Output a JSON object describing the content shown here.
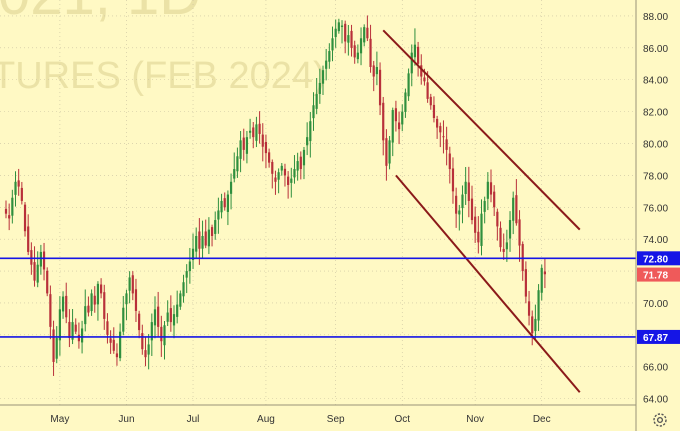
{
  "watermark": {
    "line1": "021, 1D",
    "line2": "TURES (FEB 2024)"
  },
  "chart_data": {
    "type": "candlestick",
    "ylim": [
      63.6,
      88.5
    ],
    "y_ticks": [
      64,
      66,
      68,
      70,
      72,
      74,
      76,
      78,
      80,
      82,
      84,
      86,
      88
    ],
    "x_ticks": [
      {
        "label": "May",
        "i": 17
      },
      {
        "label": "Jun",
        "i": 38
      },
      {
        "label": "Jul",
        "i": 59
      },
      {
        "label": "Aug",
        "i": 82
      },
      {
        "label": "Sep",
        "i": 104
      },
      {
        "label": "Oct",
        "i": 125
      },
      {
        "label": "Nov",
        "i": 148
      },
      {
        "label": "Dec",
        "i": 169
      }
    ],
    "closes": [
      75.6,
      75.3,
      76.6,
      77.6,
      77.3,
      76.4,
      74.5,
      73.2,
      72.4,
      71.4,
      72.4,
      73.2,
      72.1,
      70.6,
      68.5,
      66.3,
      67.8,
      69.6,
      70.4,
      69.1,
      67.8,
      68.8,
      68.2,
      67.6,
      68.4,
      69.8,
      69.4,
      70.6,
      69.9,
      71.2,
      70.6,
      69.0,
      68.0,
      67.5,
      67.0,
      66.6,
      68.2,
      69.7,
      70.6,
      71.6,
      70.6,
      69.5,
      68.3,
      67.1,
      66.6,
      67.4,
      68.8,
      69.6,
      68.5,
      67.6,
      68.6,
      69.4,
      68.8,
      69.3,
      69.9,
      70.6,
      71.3,
      72.0,
      72.6,
      73.4,
      74.2,
      73.4,
      74.2,
      73.6,
      74.6,
      74.2,
      75.2,
      75.8,
      76.4,
      76.0,
      76.8,
      77.6,
      78.4,
      79.2,
      80.2,
      79.6,
      80.4,
      80.8,
      80.4,
      81.2,
      80.6,
      79.8,
      79.4,
      78.8,
      78.1,
      77.6,
      78.2,
      78.6,
      78.0,
      77.4,
      77.8,
      78.4,
      78.9,
      78.4,
      79.6,
      80.4,
      81.4,
      82.4,
      83.1,
      83.8,
      84.6,
      85.2,
      85.8,
      86.6,
      87.2,
      87.6,
      87.4,
      86.4,
      86.8,
      86.0,
      85.4,
      85.7,
      86.6,
      87.3,
      86.6,
      84.8,
      84.2,
      84.8,
      82.4,
      80.2,
      78.6,
      80.2,
      82.1,
      81.4,
      80.9,
      82.0,
      83.2,
      84.4,
      85.7,
      86.2,
      85.0,
      84.2,
      83.9,
      82.8,
      82.4,
      81.6,
      81.0,
      80.7,
      80.4,
      79.6,
      78.4,
      77.0,
      75.6,
      75.8,
      76.8,
      77.6,
      76.4,
      75.2,
      74.4,
      73.8,
      75.6,
      76.4,
      77.6,
      76.8,
      76.0,
      74.8,
      73.5,
      73.2,
      73.8,
      75.2,
      76.6,
      75.0,
      73.6,
      72.0,
      70.4,
      69.2,
      68.1,
      69.0,
      70.8,
      72.2,
      71.8
    ]
  },
  "channel": {
    "upper": [
      [
        119,
        87.1
      ],
      [
        181,
        74.6
      ]
    ],
    "lower": [
      [
        123,
        78.0
      ],
      [
        181,
        64.4
      ]
    ]
  },
  "levels": [
    {
      "value": "72.80",
      "color": "#1515e6"
    },
    {
      "value": "67.87",
      "color": "#1515e6"
    }
  ],
  "last_price": {
    "value": "71.78",
    "y": 71.78,
    "color": "#ef5a5a"
  },
  "colors": {
    "up": "#2f8f3e",
    "down": "#b8303a",
    "channel": "#8b1a1a",
    "background": "#fff9c4",
    "grid": "#c8c0a0"
  },
  "settings_icon": "gear-icon"
}
